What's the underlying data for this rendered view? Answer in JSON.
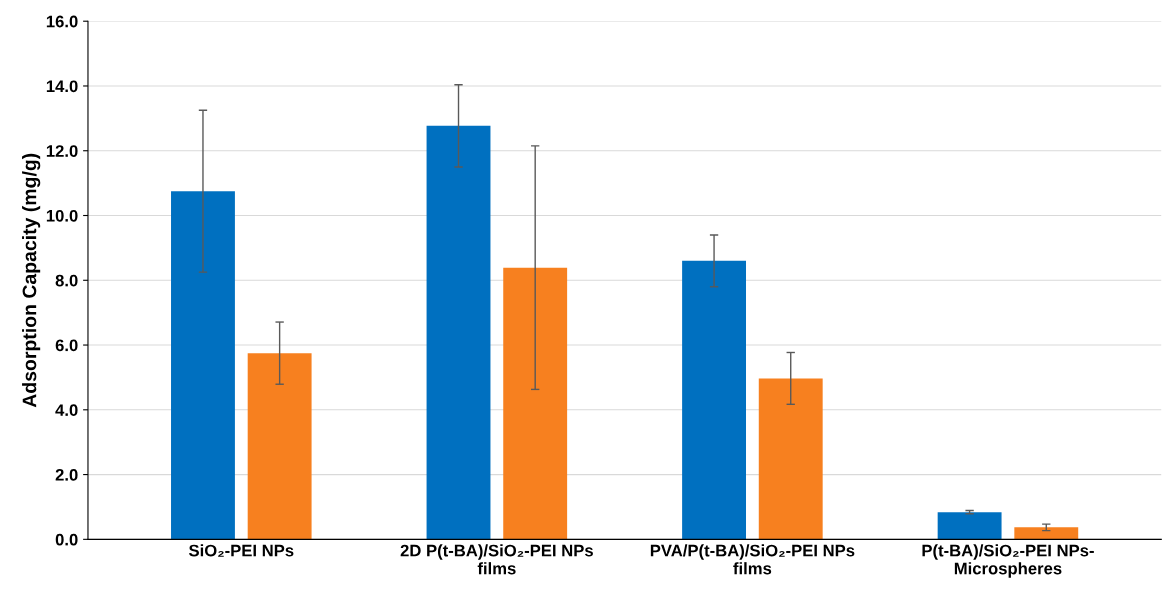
{
  "chart_data": {
    "type": "bar",
    "ylabel": "Adsorption Capacity (mg/g)",
    "categories": [
      "SiO₂-PEI NPs",
      "2D P(t-BA)/SiO₂-PEI NPs\nfilms",
      "PVA/P(t-BA)/SiO₂-PEI NPs\nfilms",
      "P(t-BA)/SiO₂-PEI NPs-\nMicrospheres"
    ],
    "series": [
      {
        "color": "#0070c0",
        "values": [
          10.75,
          12.77,
          8.6,
          0.84
        ],
        "errors": [
          2.5,
          1.27,
          0.8,
          0.05
        ]
      },
      {
        "color": "#f7801f",
        "values": [
          5.75,
          8.39,
          4.97,
          0.37
        ],
        "errors": [
          0.96,
          3.76,
          0.8,
          0.1
        ]
      }
    ],
    "ylim": [
      0,
      16
    ],
    "yticks": [
      {
        "value": 0,
        "label": "0.0"
      },
      {
        "value": 2,
        "label": "2.0"
      },
      {
        "value": 4,
        "label": "4.0"
      },
      {
        "value": 6,
        "label": "6.0"
      },
      {
        "value": 8,
        "label": "8.0"
      },
      {
        "value": 10,
        "label": "10.0"
      },
      {
        "value": 12,
        "label": "12.0"
      },
      {
        "value": 14,
        "label": "14.0"
      },
      {
        "value": 16,
        "label": "16.0"
      }
    ],
    "grid": "y"
  }
}
